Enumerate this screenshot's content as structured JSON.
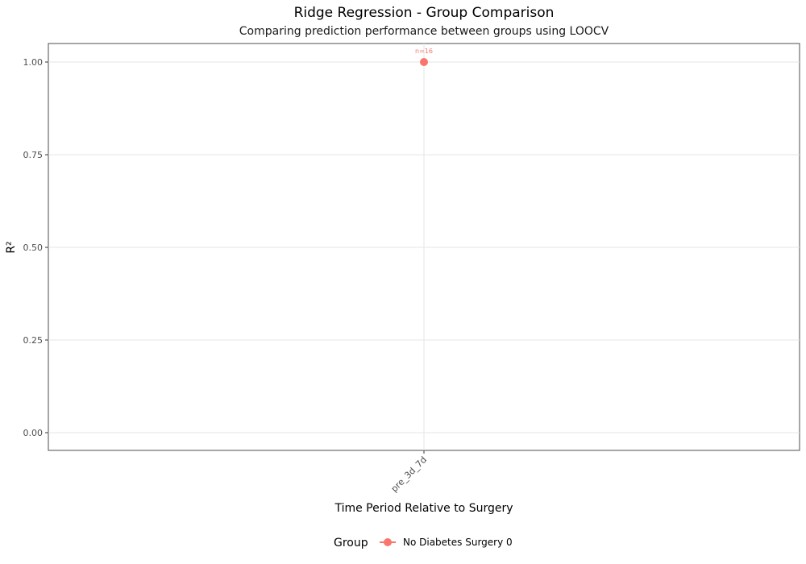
{
  "chart_data": {
    "type": "line",
    "title": "Ridge Regression - Group Comparison",
    "subtitle": "Comparing prediction performance between groups using LOOCV",
    "xlabel": "Time Period Relative to Surgery",
    "ylabel": "R²",
    "categories": [
      "pre_3d_7d"
    ],
    "ylim": [
      0,
      1
    ],
    "yticks": [
      "0.00",
      "0.25",
      "0.50",
      "0.75",
      "1.00"
    ],
    "series": [
      {
        "name": "No Diabetes Surgery 0",
        "color": "#F8766D",
        "values": [
          1.0
        ],
        "labels": [
          "n=16"
        ]
      }
    ],
    "legend": {
      "title": "Group",
      "position": "bottom"
    },
    "grid": true
  }
}
